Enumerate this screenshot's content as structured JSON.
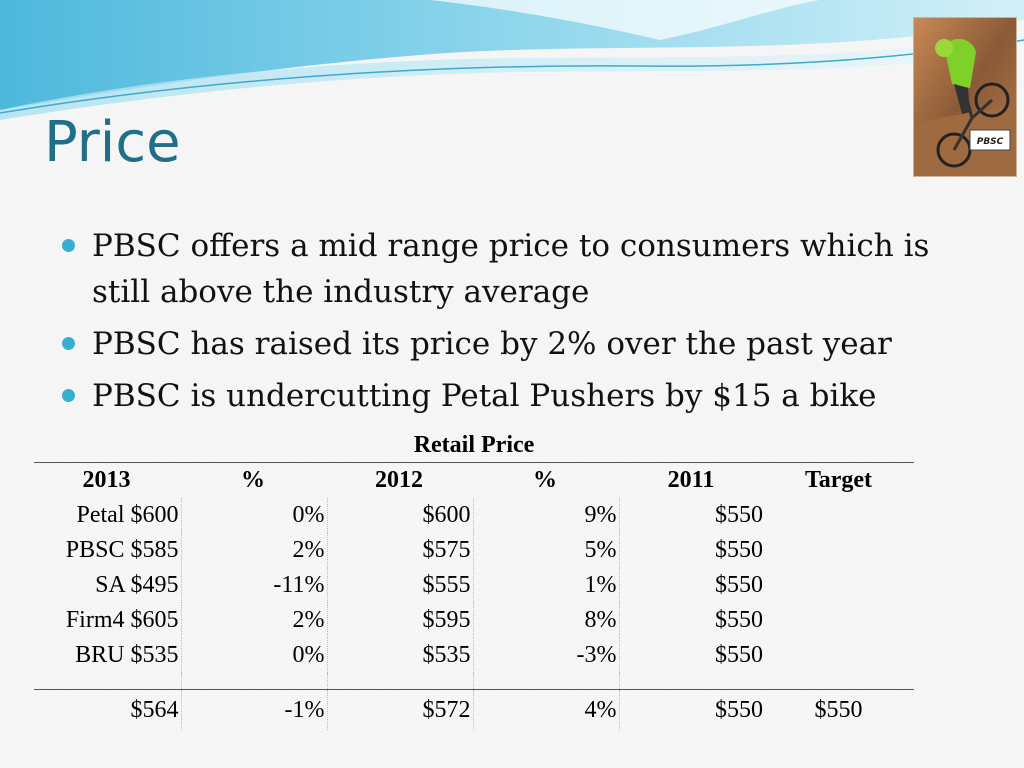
{
  "slide": {
    "title": "Price",
    "photo_text": "PBSC",
    "bullets": [
      "PBSC offers a mid range price to consumers which is still above the industry average",
      "PBSC has raised its price by 2% over the past year",
      "PBSC is undercutting Petal Pushers by $15 a bike"
    ]
  },
  "table": {
    "caption": "Retail Price",
    "headers": [
      "2013",
      "%",
      "2012",
      "%",
      "2011",
      "Target"
    ],
    "rows": [
      [
        "Petal $600",
        "0%",
        "$600",
        "9%",
        "$550",
        ""
      ],
      [
        "PBSC $585",
        "2%",
        "$575",
        "5%",
        "$550",
        ""
      ],
      [
        "SA $495",
        "-11%",
        "$555",
        "1%",
        "$550",
        ""
      ],
      [
        "Firm4 $605",
        "2%",
        "$595",
        "8%",
        "$550",
        ""
      ],
      [
        "BRU $535",
        "0%",
        "$535",
        "-3%",
        "$550",
        ""
      ]
    ],
    "average": [
      "$564",
      "-1%",
      "$572",
      "4%",
      "$550",
      "$550"
    ]
  },
  "colors": {
    "title": "#1f6f88",
    "bullet": "#3aaecf",
    "wave": "#5fc3e4"
  }
}
